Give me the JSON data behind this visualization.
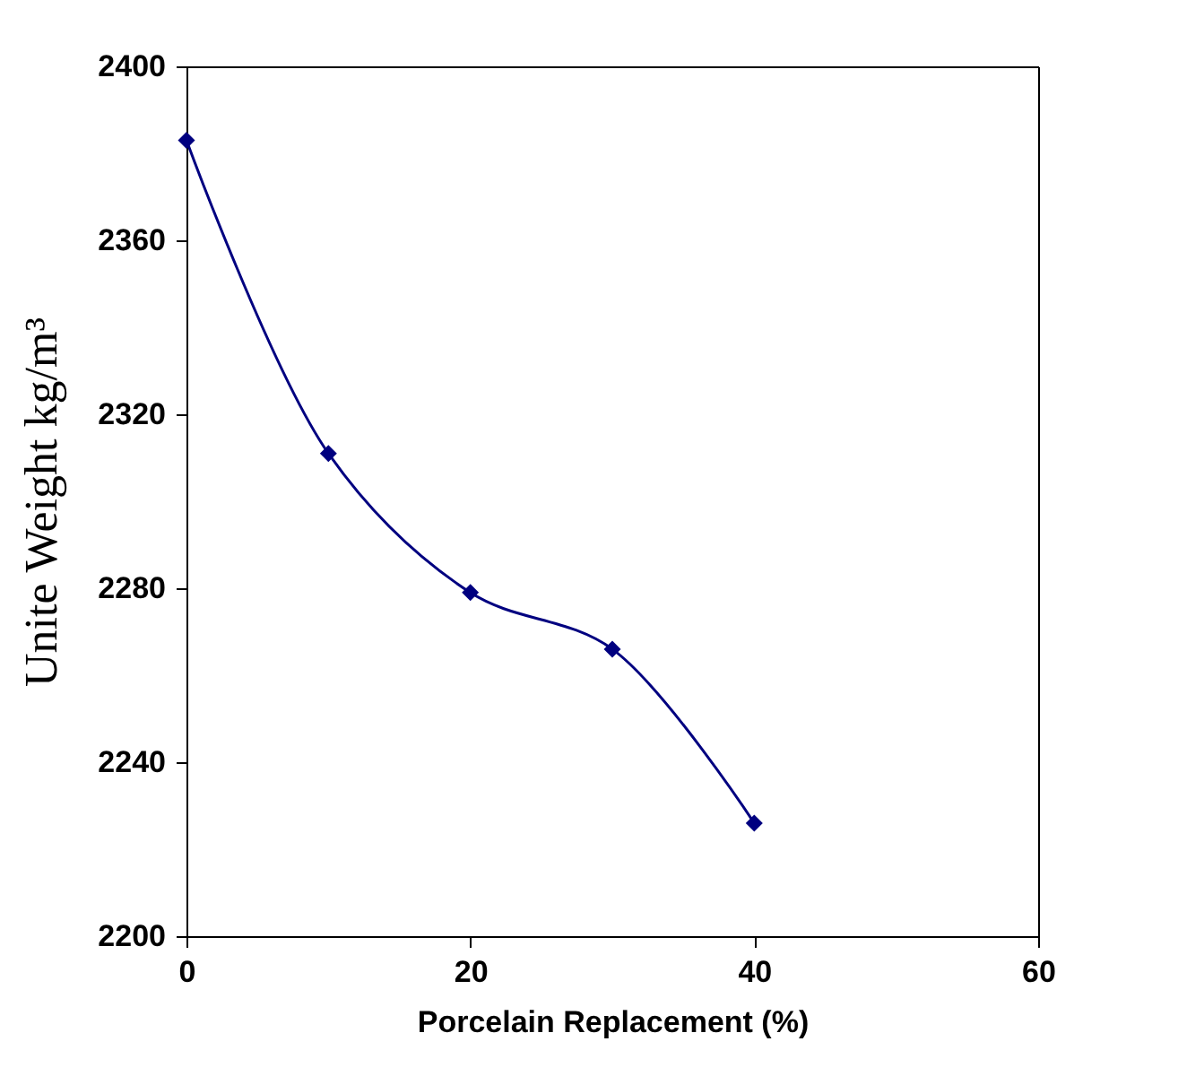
{
  "chart_data": {
    "type": "line",
    "xlabel": "Porcelain Replacement (%)",
    "ylabel": "Unite Weight kg/m³",
    "x": [
      0,
      10,
      20,
      30,
      40
    ],
    "series": [
      {
        "color": "#000080",
        "values": [
          2383,
          2311,
          2279,
          2266,
          2226
        ]
      }
    ],
    "xlim": [
      0,
      60
    ],
    "xticks": [
      0,
      20,
      40,
      60
    ],
    "ylim": [
      2200,
      2400
    ],
    "yticks": [
      2200,
      2240,
      2280,
      2320,
      2360,
      2400
    ],
    "marker": "diamond",
    "grid": false,
    "legend": false
  }
}
